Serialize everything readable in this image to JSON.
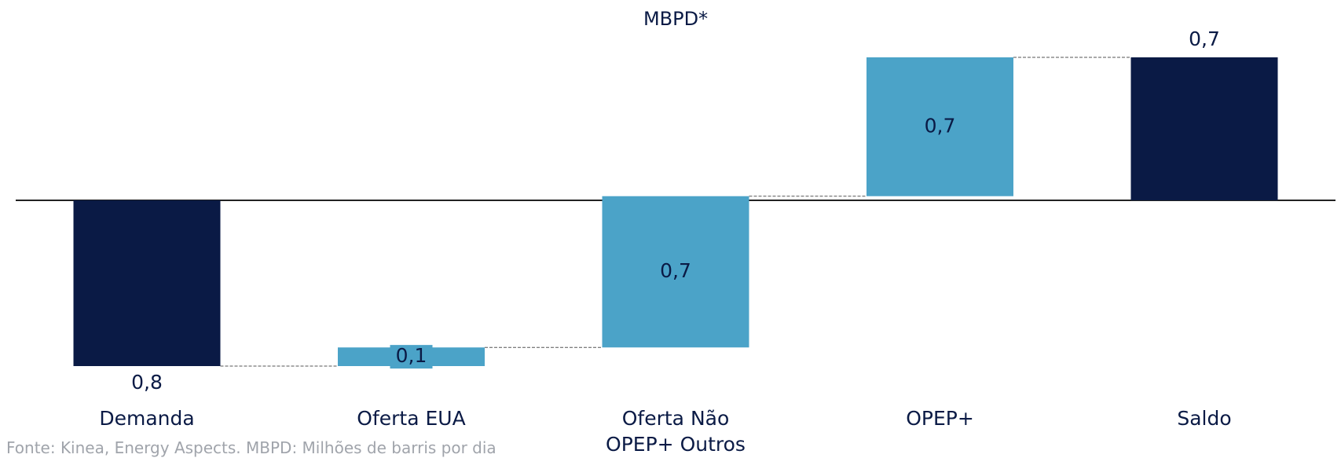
{
  "chart_data": {
    "type": "waterfall",
    "subtitle": "MBPD*",
    "source": "Fonte: Kinea, Energy Aspects. MBPD: Milhões de barris por dia",
    "categories": [
      "Demanda",
      "Oferta EUA",
      "Oferta Não OPEP+ Outros",
      "OPEP+",
      "Saldo"
    ],
    "measure": [
      "absolute",
      "relative",
      "relative",
      "relative",
      "total"
    ],
    "values": [
      -0.8,
      0.09,
      0.73,
      0.67,
      0.69
    ],
    "value_labels": [
      "0,8",
      "0,1",
      "0,7",
      "0,7",
      "0,7"
    ],
    "colors": [
      "#0a1a45",
      "#4ba3c8",
      "#4ba3c8",
      "#4ba3c8",
      "#0a1a45"
    ]
  }
}
